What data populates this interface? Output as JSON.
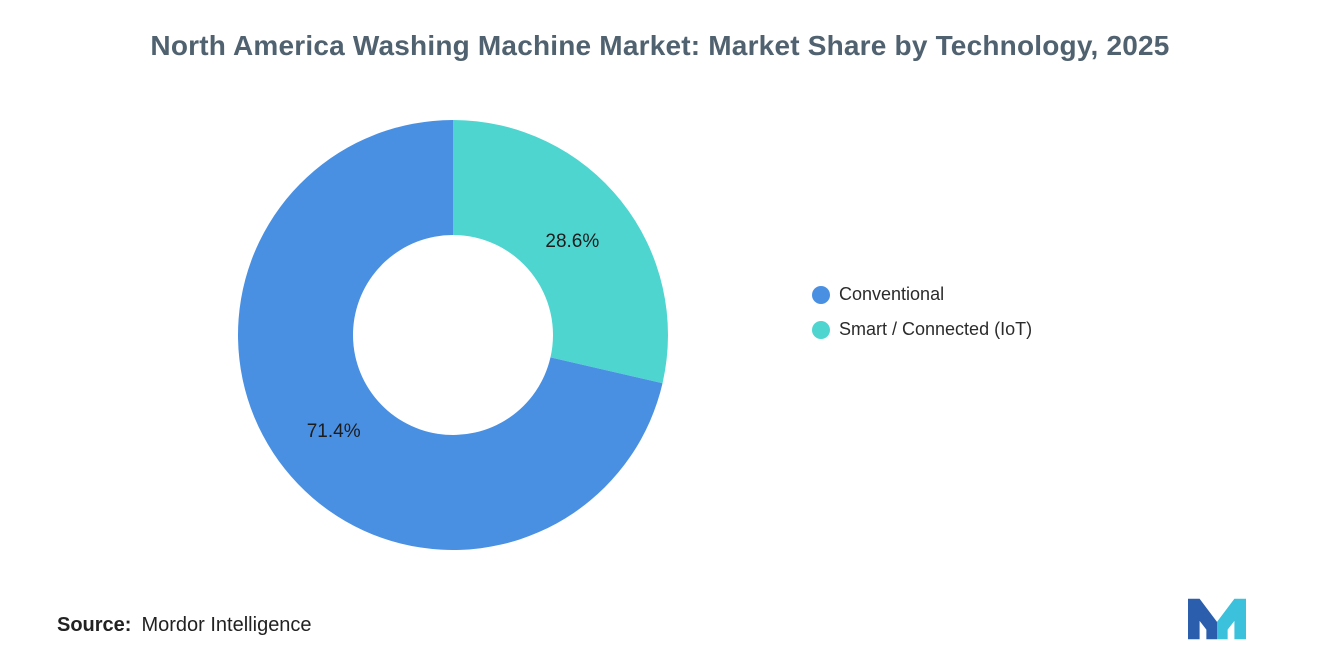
{
  "header": {
    "title": "North America Washing Machine Market: Market Share by Technology, 2025"
  },
  "chart_data": {
    "type": "pie",
    "subtype": "donut",
    "title": "North America Washing Machine Market: Market Share by Technology, 2025",
    "start_angle_deg": -90,
    "inner_radius_ratio": 0.465,
    "segments": [
      {
        "label": "Smart / Connected (IoT)",
        "value": 28.6,
        "display": "28.6%",
        "color": "#4ED5D0"
      },
      {
        "label": "Conventional",
        "value": 71.4,
        "display": "71.4%",
        "color": "#4A90E2"
      }
    ],
    "legend": [
      {
        "label": "Conventional",
        "color": "#4A90E2"
      },
      {
        "label": "Smart / Connected (IoT)",
        "color": "#4ED5D0"
      }
    ],
    "legend_position": "right"
  },
  "source": {
    "label": "Source:",
    "value": "Mordor Intelligence"
  },
  "logo": {
    "name": "mordor-intelligence-logo",
    "blue": "#2B5FAE",
    "teal": "#3BC1DB"
  }
}
